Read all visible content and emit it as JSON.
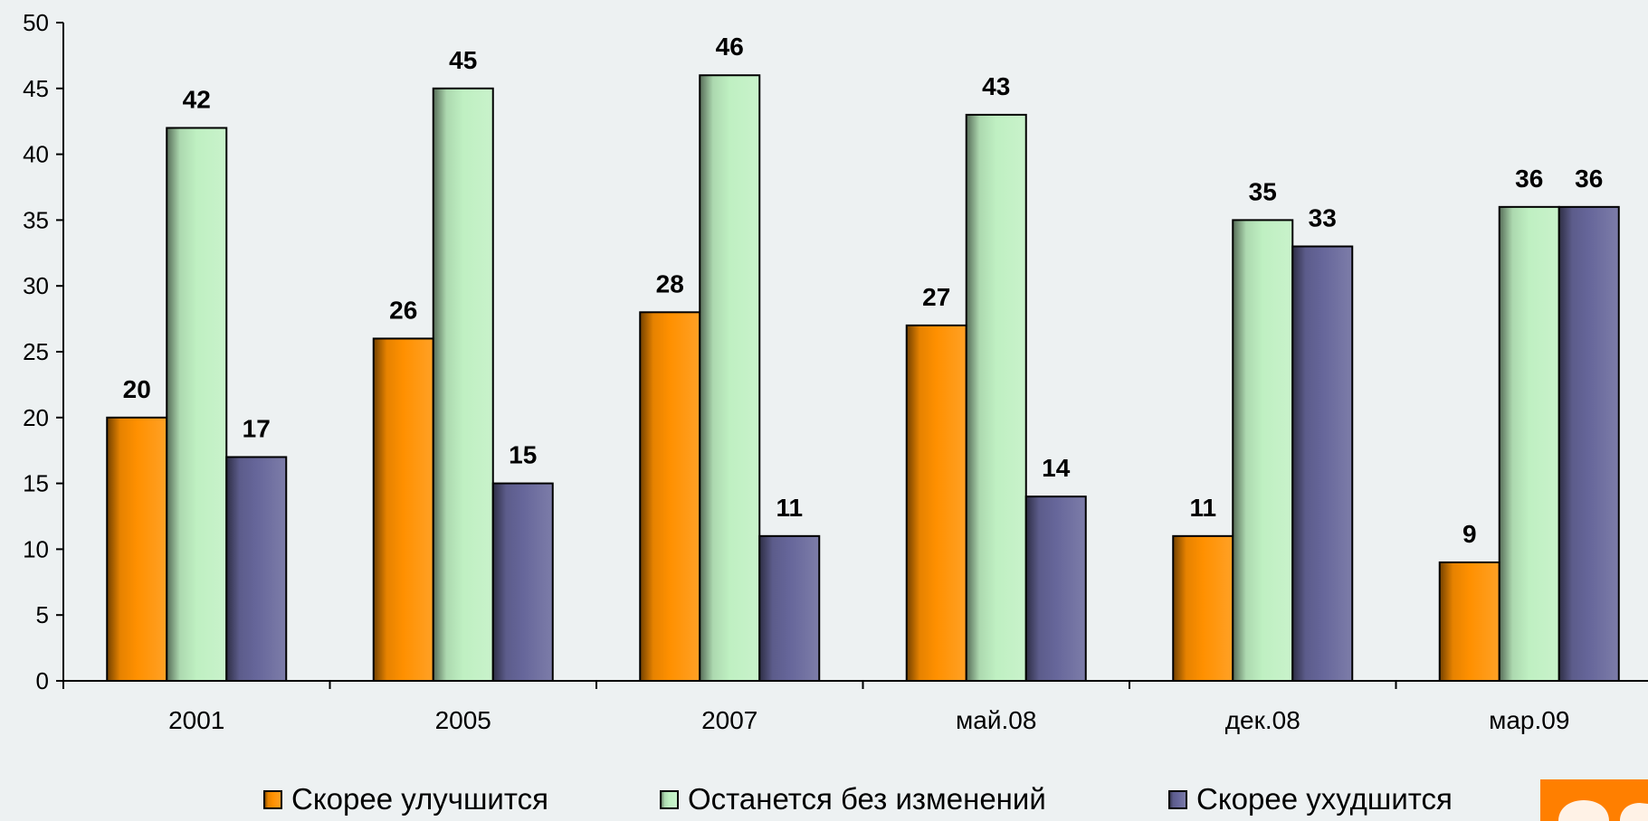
{
  "chart_data": {
    "type": "bar",
    "categories": [
      "2001",
      "2005",
      "2007",
      "май.08",
      "дек.08",
      "мар.09"
    ],
    "series": [
      {
        "name": "Скорее улучшится",
        "color": "#ff9000",
        "values": [
          20,
          26,
          28,
          27,
          11,
          9
        ]
      },
      {
        "name": "Останется без изменений",
        "color": "#bff0c2",
        "values": [
          42,
          45,
          46,
          43,
          35,
          36
        ]
      },
      {
        "name": "Скорее ухудшится",
        "color": "#66669a",
        "values": [
          17,
          15,
          11,
          14,
          33,
          36
        ]
      }
    ],
    "ylim": [
      0,
      50
    ],
    "yticks": [
      0,
      5,
      10,
      15,
      20,
      25,
      30,
      35,
      40,
      45,
      50
    ],
    "title": "",
    "xlabel": "",
    "ylabel": "",
    "grid": false,
    "legend_position": "bottom"
  },
  "corner_logo": {
    "color": "#ff7f00"
  }
}
